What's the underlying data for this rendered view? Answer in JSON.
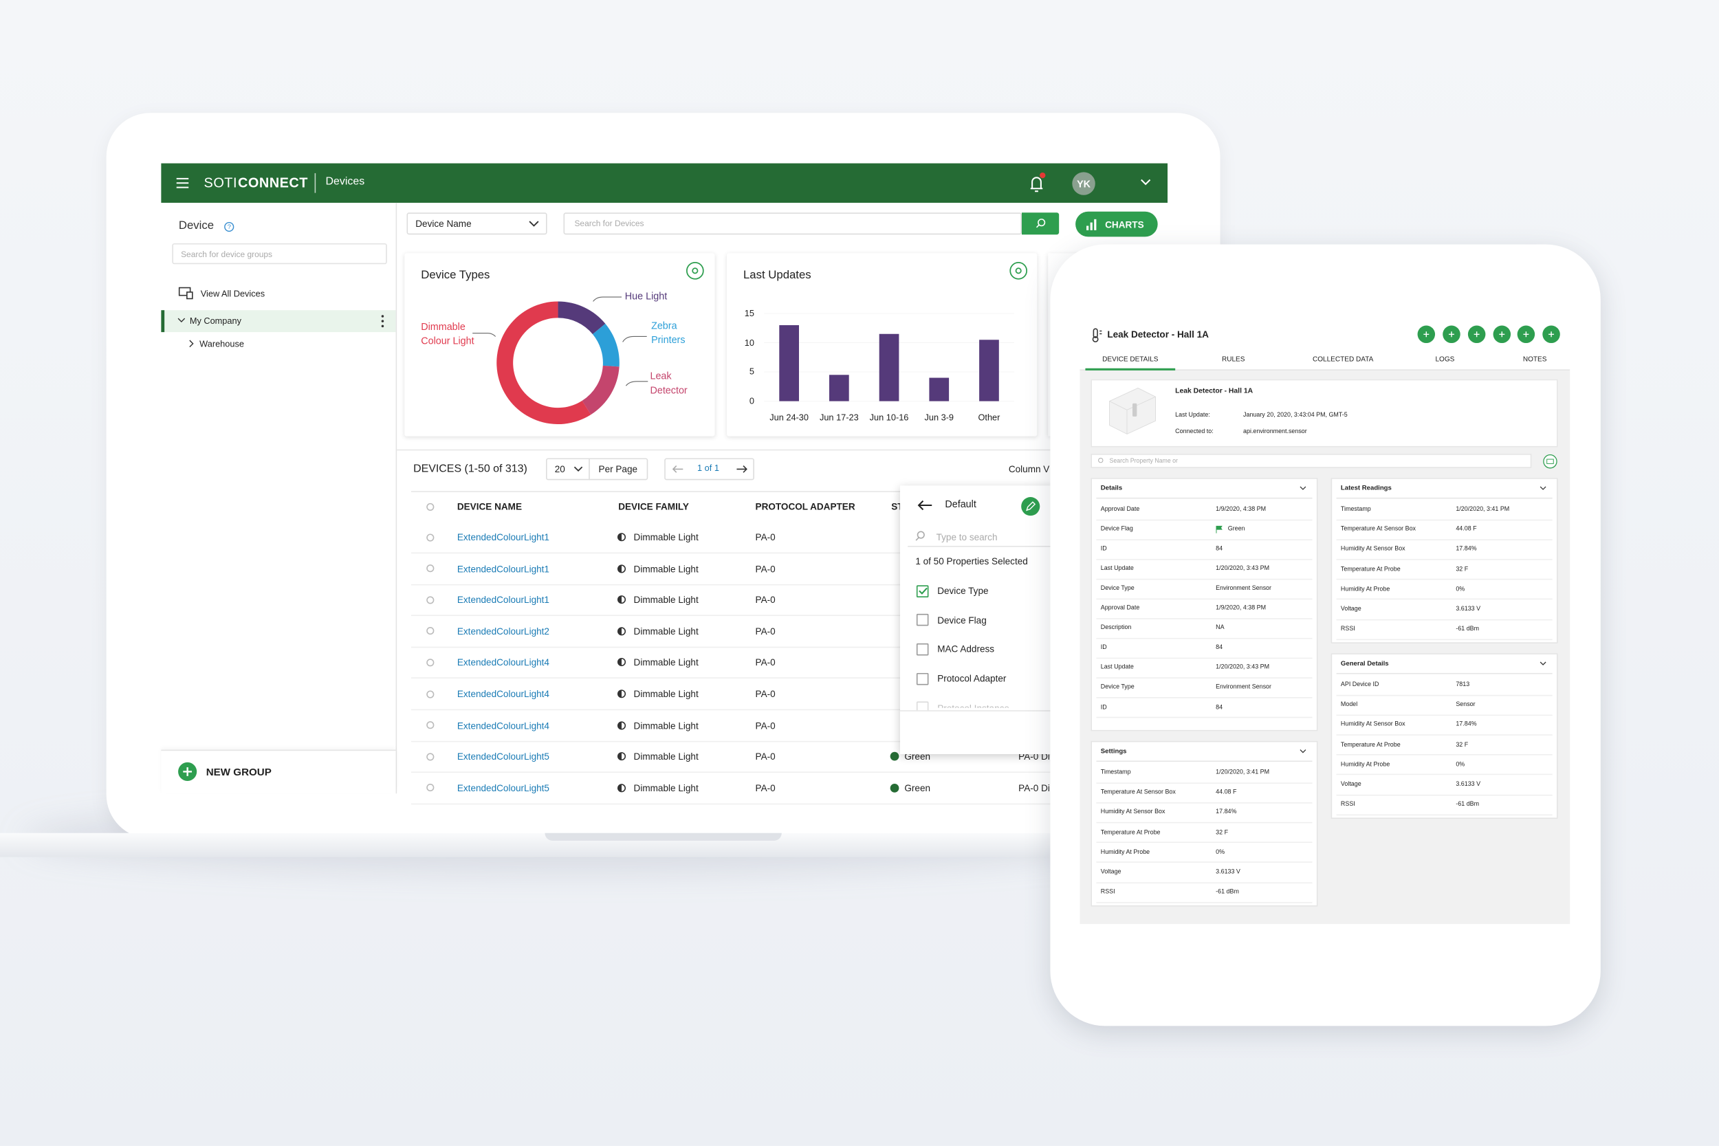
{
  "header": {
    "brand": "SOTI",
    "product": "CONNECT",
    "section": "Devices",
    "avatar": "YK"
  },
  "sidebar": {
    "title": "Device",
    "search_placeholder": "Search for device groups",
    "view_all": "View All Devices",
    "group": "My Company",
    "subgroup": "Warehouse",
    "new_group": "NEW GROUP"
  },
  "toolbar": {
    "filter": "Device Name",
    "search_placeholder": "Search for Devices",
    "charts_button": "CHARTS"
  },
  "chart_data": [
    {
      "type": "pie",
      "donut": true,
      "title": "Device Types",
      "categories": [
        "Hue Light",
        "Zebra Printers",
        "Leak Detector",
        "Dimmable Colour Light"
      ],
      "values": [
        14,
        12,
        15,
        59
      ],
      "colors": [
        "#553a7a",
        "#2c9fd8",
        "#c4456d",
        "#e03a4e"
      ]
    },
    {
      "type": "bar",
      "title": "Last Updates",
      "categories": [
        "Jun 24-30",
        "Jun 17-23",
        "Jun 10-16",
        "Jun 3-9",
        "Other"
      ],
      "values": [
        13,
        4.5,
        11.5,
        4,
        10.5
      ],
      "color": "#553a7a",
      "ylim": [
        0,
        15
      ],
      "yticks": [
        0,
        5,
        10,
        15
      ],
      "grid": true
    }
  ],
  "table": {
    "title": "DEVICES (1-50 of 313)",
    "per_page_value": "20",
    "per_page_label": "Per Page",
    "page": "1 of 1",
    "column_button": "Column V",
    "columns": [
      "DEVICE NAME",
      "DEVICE FAMILY",
      "PROTOCOL ADAPTER",
      "ST"
    ],
    "rows": [
      [
        "ExtendedColourLight1",
        "Dimmable Light",
        "PA-0"
      ],
      [
        "ExtendedColourLight1",
        "Dimmable Light",
        "PA-0"
      ],
      [
        "ExtendedColourLight1",
        "Dimmable Light",
        "PA-0"
      ],
      [
        "ExtendedColourLight2",
        "Dimmable Light",
        "PA-0"
      ],
      [
        "ExtendedColourLight4",
        "Dimmable Light",
        "PA-0"
      ],
      [
        "ExtendedColourLight4",
        "Dimmable Light",
        "PA-0"
      ],
      [
        "ExtendedColourLight4",
        "Dimmable Light",
        "PA-0"
      ],
      [
        "ExtendedColourLight5",
        "Dimmable Light",
        "PA-0",
        "Green",
        "PA-0 Di"
      ],
      [
        "ExtendedColourLight5",
        "Dimmable Light",
        "PA-0",
        "Green",
        "PA-0 Di"
      ]
    ]
  },
  "column_menu": {
    "title": "Default",
    "search_placeholder": "Type to search",
    "summary": "1 of 50 Properties Selected",
    "options": [
      {
        "label": "Device Type",
        "checked": true
      },
      {
        "label": "Device Flag",
        "checked": false
      },
      {
        "label": "MAC Address",
        "checked": false
      },
      {
        "label": "Protocol Adapter",
        "checked": false
      },
      {
        "label": "Protocol Instance",
        "checked": false
      }
    ]
  },
  "tablet": {
    "title": "Leak Detector - Hall 1A",
    "tabs": [
      "DEVICE DETAILS",
      "RULES",
      "COLLECTED DATA",
      "LOGS",
      "NOTES"
    ],
    "card": {
      "name": "Leak Detector - Hall 1A",
      "last_update_label": "Last Update:",
      "last_update": "January 20, 2020, 3:43:04 PM, GMT-5",
      "connected_label": "Connected to:",
      "connected": "api.environment.sensor"
    },
    "search_placeholder": "Search Property Name or",
    "panels": [
      {
        "title": "Details",
        "rows": [
          [
            "Approval Date",
            "1/9/2020, 4:38 PM"
          ],
          [
            "Device Flag",
            "Green"
          ],
          [
            "ID",
            "84"
          ],
          [
            "Last Update",
            "1/20/2020, 3:43 PM"
          ],
          [
            "Device Type",
            "Environment Sensor"
          ],
          [
            "Approval Date",
            "1/9/2020, 4:38 PM"
          ],
          [
            "Description",
            "NA"
          ],
          [
            "ID",
            "84"
          ],
          [
            "Last Update",
            "1/20/2020, 3:43 PM"
          ],
          [
            "Device Type",
            "Environment Sensor"
          ],
          [
            "ID",
            "84"
          ]
        ]
      },
      {
        "title": "Settings",
        "rows": [
          [
            "Timestamp",
            "1/20/2020, 3:41 PM"
          ],
          [
            "Temperature At Sensor Box",
            "44.08 F"
          ],
          [
            "Humidity At Sensor Box",
            "17.84%"
          ],
          [
            "Temperature At Probe",
            "32 F"
          ],
          [
            "Humidity At Probe",
            "0%"
          ],
          [
            "Voltage",
            "3.6133 V"
          ],
          [
            "RSSI",
            "-61 dBm"
          ]
        ]
      },
      {
        "title": "Latest Readings",
        "rows": [
          [
            "Timestamp",
            "1/20/2020, 3:41 PM"
          ],
          [
            "Temperature At Sensor Box",
            "44.08 F"
          ],
          [
            "Humidity At Sensor Box",
            "17.84%"
          ],
          [
            "Temperature At Probe",
            "32 F"
          ],
          [
            "Humidity At Probe",
            "0%"
          ],
          [
            "Voltage",
            "3.6133 V"
          ],
          [
            "RSSI",
            "-61 dBm"
          ]
        ]
      },
      {
        "title": "General Details",
        "rows": [
          [
            "API Device ID",
            "7813"
          ],
          [
            "Model",
            "Sensor"
          ],
          [
            "Humidity At Sensor Box",
            "17.84%"
          ],
          [
            "Temperature At Probe",
            "32 F"
          ],
          [
            "Humidity At Probe",
            "0%"
          ],
          [
            "Voltage",
            "3.6133 V"
          ],
          [
            "RSSI",
            "-61 dBm"
          ]
        ]
      }
    ]
  }
}
